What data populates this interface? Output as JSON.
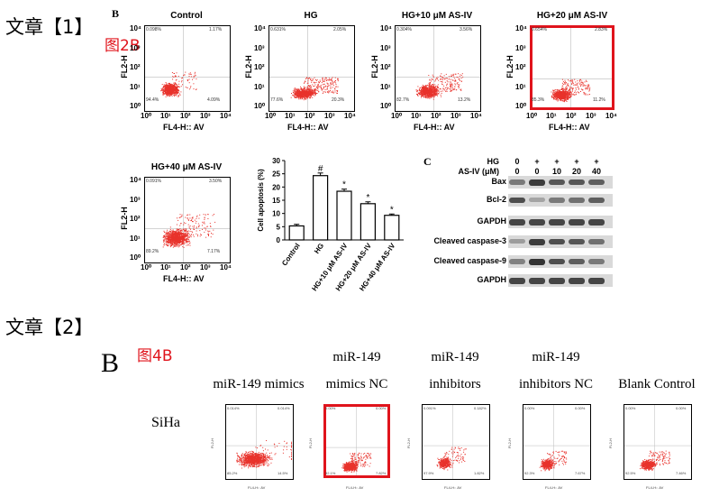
{
  "heading1": "文章【1】",
  "heading2": "文章【2】",
  "fig1": {
    "tag": "图2B",
    "panel_B": "B",
    "panel_C": "C",
    "x_axis": "FL4-H:: AV",
    "y_axis": "FL2-H",
    "plots": [
      {
        "title": "Control",
        "q1": "0.098%",
        "q2": "1.17%",
        "q3": "4.09%",
        "q4": "94.4%"
      },
      {
        "title": "HG",
        "q1": "0.631%",
        "q2": "2.05%",
        "q3": "20.3%",
        "q4": "77.6%"
      },
      {
        "title": "HG+10 μM AS-IV",
        "q1": "0.304%",
        "q2": "3.56%",
        "q3": "13.2%",
        "q4": "82.7%"
      },
      {
        "title": "HG+20 μM AS-IV",
        "q1": "0.654%",
        "q2": "2.83%",
        "q3": "11.2%",
        "q4": "85.3%"
      },
      {
        "title": "HG+40 μM AS-IV",
        "q1": "0.091%",
        "q2": "3.50%",
        "q3": "7.17%",
        "q4": "89.2%"
      }
    ],
    "wb": {
      "hg_label": "HG",
      "asiv_label": "AS-IV (μM)",
      "hg_values": [
        "0",
        "+",
        "+",
        "+",
        "+"
      ],
      "asiv_values": [
        "0",
        "0",
        "10",
        "20",
        "40"
      ],
      "bands": [
        "Bax",
        "Bcl-2",
        "GAPDH",
        "Cleaved caspase-3",
        "Cleaved caspase-9",
        "GAPDH"
      ]
    }
  },
  "fig2": {
    "tag": "图4B",
    "panel_B": "B",
    "row_label": "SiHa",
    "plots": [
      {
        "title": "miR-149 mimics",
        "q1": "0.014%",
        "q2": "0.014%",
        "q3": "14.5%",
        "q4": "85.2%"
      },
      {
        "title": "miR-149\nmimics NC",
        "q1": "0.00%",
        "q2": "0.00%",
        "q3": "7.82%",
        "q4": "92.1%"
      },
      {
        "title": "miR-149\ninhibitors",
        "q1": "0.091%",
        "q2": "0.182%",
        "q3": "1.82%",
        "q4": "97.9%"
      },
      {
        "title": "miR-149\ninhibitors NC",
        "q1": "0.00%",
        "q2": "0.00%",
        "q3": "7.67%",
        "q4": "92.3%"
      },
      {
        "title": "Blank Control",
        "q1": "0.00%",
        "q2": "0.00%",
        "q3": "7.46%",
        "q4": "92.5%"
      }
    ],
    "x_axis": "FL4-H:: AV",
    "y_axis": "FL2-H"
  },
  "chart_data": {
    "type": "bar",
    "ylabel": "Cell apoptosis (%)",
    "categories": [
      "Control",
      "HG",
      "HG+10 μM AS-IV",
      "HG+20 μM AS-IV",
      "HG+40 μM AS-IV"
    ],
    "values": [
      5.3,
      24.3,
      18.4,
      13.7,
      9.3
    ],
    "errors": [
      0.6,
      1.0,
      0.8,
      0.7,
      0.5
    ],
    "annotations": [
      "",
      "#",
      "*",
      "*",
      "*"
    ],
    "ylim": [
      0,
      30
    ],
    "yticks": [
      0,
      5,
      10,
      15,
      20,
      25,
      30
    ],
    "colors": {
      "bar_fill": "#ffffff",
      "bar_stroke": "#000000"
    }
  },
  "colors": {
    "dot": "#e8322c",
    "highlight": "#e0141c",
    "band": "#2a2a2a"
  }
}
